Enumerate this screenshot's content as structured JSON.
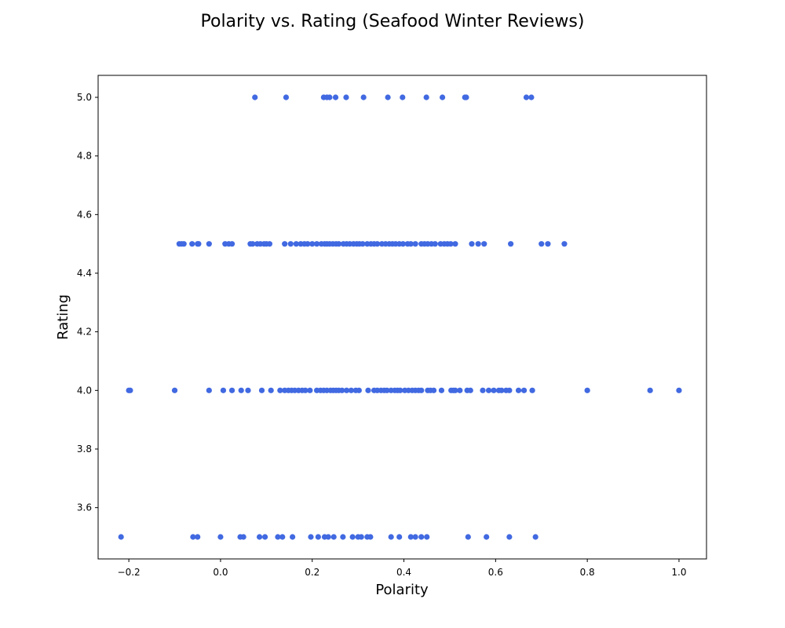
{
  "chart_data": {
    "type": "scatter",
    "title": "Polarity vs. Rating (Seafood Winter Reviews)",
    "xlabel": "Polarity",
    "ylabel": "Rating",
    "xlim": [
      -0.267,
      1.06
    ],
    "ylim": [
      3.425,
      5.075
    ],
    "xticks": [
      -0.2,
      0.0,
      0.2,
      0.4,
      0.6,
      0.8,
      1.0
    ],
    "xtick_labels": [
      "−0.2",
      "0.0",
      "0.2",
      "0.4",
      "0.6",
      "0.8",
      "1.0"
    ],
    "yticks": [
      3.6,
      3.8,
      4.0,
      4.2,
      4.4,
      4.6,
      4.8,
      5.0
    ],
    "ytick_labels": [
      "3.6",
      "3.8",
      "4.0",
      "4.2",
      "4.4",
      "4.6",
      "4.8",
      "5.0"
    ],
    "grid": false,
    "marker_color": "#4169e1",
    "series": [
      {
        "points": [
          [
            0.075,
            5.0
          ],
          [
            0.143,
            5.0
          ],
          [
            0.225,
            5.0
          ],
          [
            0.232,
            5.0
          ],
          [
            0.238,
            5.0
          ],
          [
            0.251,
            5.0
          ],
          [
            0.274,
            5.0
          ],
          [
            0.312,
            5.0
          ],
          [
            0.365,
            5.0
          ],
          [
            0.397,
            5.0
          ],
          [
            0.449,
            5.0
          ],
          [
            0.484,
            5.0
          ],
          [
            0.533,
            5.0
          ],
          [
            0.536,
            5.0
          ],
          [
            0.667,
            5.0
          ],
          [
            0.678,
            5.0
          ],
          [
            -0.09,
            4.5
          ],
          [
            -0.085,
            4.5
          ],
          [
            -0.08,
            4.5
          ],
          [
            -0.062,
            4.5
          ],
          [
            -0.05,
            4.5
          ],
          [
            -0.048,
            4.5
          ],
          [
            -0.025,
            4.5
          ],
          [
            0.01,
            4.5
          ],
          [
            0.018,
            4.5
          ],
          [
            0.025,
            4.5
          ],
          [
            0.065,
            4.5
          ],
          [
            0.07,
            4.5
          ],
          [
            0.08,
            4.5
          ],
          [
            0.087,
            4.5
          ],
          [
            0.095,
            4.5
          ],
          [
            0.1,
            4.5
          ],
          [
            0.107,
            4.5
          ],
          [
            0.14,
            4.5
          ],
          [
            0.153,
            4.5
          ],
          [
            0.165,
            4.5
          ],
          [
            0.175,
            4.5
          ],
          [
            0.183,
            4.5
          ],
          [
            0.19,
            4.5
          ],
          [
            0.2,
            4.5
          ],
          [
            0.21,
            4.5
          ],
          [
            0.22,
            4.5
          ],
          [
            0.227,
            4.5
          ],
          [
            0.232,
            4.5
          ],
          [
            0.238,
            4.5
          ],
          [
            0.245,
            4.5
          ],
          [
            0.252,
            4.5
          ],
          [
            0.258,
            4.5
          ],
          [
            0.268,
            4.5
          ],
          [
            0.275,
            4.5
          ],
          [
            0.282,
            4.5
          ],
          [
            0.29,
            4.5
          ],
          [
            0.297,
            4.5
          ],
          [
            0.303,
            4.5
          ],
          [
            0.31,
            4.5
          ],
          [
            0.32,
            4.5
          ],
          [
            0.328,
            4.5
          ],
          [
            0.335,
            4.5
          ],
          [
            0.342,
            4.5
          ],
          [
            0.352,
            4.5
          ],
          [
            0.36,
            4.5
          ],
          [
            0.368,
            4.5
          ],
          [
            0.375,
            4.5
          ],
          [
            0.382,
            4.5
          ],
          [
            0.39,
            4.5
          ],
          [
            0.398,
            4.5
          ],
          [
            0.408,
            4.5
          ],
          [
            0.415,
            4.5
          ],
          [
            0.425,
            4.5
          ],
          [
            0.438,
            4.5
          ],
          [
            0.445,
            4.5
          ],
          [
            0.452,
            4.5
          ],
          [
            0.46,
            4.5
          ],
          [
            0.468,
            4.5
          ],
          [
            0.48,
            4.5
          ],
          [
            0.488,
            4.5
          ],
          [
            0.495,
            4.5
          ],
          [
            0.502,
            4.5
          ],
          [
            0.512,
            4.5
          ],
          [
            0.548,
            4.5
          ],
          [
            0.562,
            4.5
          ],
          [
            0.575,
            4.5
          ],
          [
            0.633,
            4.5
          ],
          [
            0.7,
            4.5
          ],
          [
            0.714,
            4.5
          ],
          [
            0.75,
            4.5
          ],
          [
            -0.2,
            4.0
          ],
          [
            -0.197,
            4.0
          ],
          [
            -0.1,
            4.0
          ],
          [
            -0.025,
            4.0
          ],
          [
            0.006,
            4.0
          ],
          [
            0.025,
            4.0
          ],
          [
            0.045,
            4.0
          ],
          [
            0.06,
            4.0
          ],
          [
            0.09,
            4.0
          ],
          [
            0.11,
            4.0
          ],
          [
            0.13,
            4.0
          ],
          [
            0.14,
            4.0
          ],
          [
            0.148,
            4.0
          ],
          [
            0.155,
            4.0
          ],
          [
            0.162,
            4.0
          ],
          [
            0.17,
            4.0
          ],
          [
            0.178,
            4.0
          ],
          [
            0.185,
            4.0
          ],
          [
            0.195,
            4.0
          ],
          [
            0.21,
            4.0
          ],
          [
            0.218,
            4.0
          ],
          [
            0.225,
            4.0
          ],
          [
            0.232,
            4.0
          ],
          [
            0.24,
            4.0
          ],
          [
            0.246,
            4.0
          ],
          [
            0.252,
            4.0
          ],
          [
            0.258,
            4.0
          ],
          [
            0.265,
            4.0
          ],
          [
            0.275,
            4.0
          ],
          [
            0.285,
            4.0
          ],
          [
            0.295,
            4.0
          ],
          [
            0.302,
            4.0
          ],
          [
            0.322,
            4.0
          ],
          [
            0.335,
            4.0
          ],
          [
            0.342,
            4.0
          ],
          [
            0.35,
            4.0
          ],
          [
            0.357,
            4.0
          ],
          [
            0.363,
            4.0
          ],
          [
            0.372,
            4.0
          ],
          [
            0.38,
            4.0
          ],
          [
            0.386,
            4.0
          ],
          [
            0.392,
            4.0
          ],
          [
            0.402,
            4.0
          ],
          [
            0.41,
            4.0
          ],
          [
            0.418,
            4.0
          ],
          [
            0.425,
            4.0
          ],
          [
            0.432,
            4.0
          ],
          [
            0.438,
            4.0
          ],
          [
            0.452,
            4.0
          ],
          [
            0.458,
            4.0
          ],
          [
            0.465,
            4.0
          ],
          [
            0.482,
            4.0
          ],
          [
            0.503,
            4.0
          ],
          [
            0.508,
            4.0
          ],
          [
            0.512,
            4.0
          ],
          [
            0.522,
            4.0
          ],
          [
            0.538,
            4.0
          ],
          [
            0.545,
            4.0
          ],
          [
            0.572,
            4.0
          ],
          [
            0.585,
            4.0
          ],
          [
            0.596,
            4.0
          ],
          [
            0.607,
            4.0
          ],
          [
            0.613,
            4.0
          ],
          [
            0.623,
            4.0
          ],
          [
            0.63,
            4.0
          ],
          [
            0.65,
            4.0
          ],
          [
            0.662,
            4.0
          ],
          [
            0.68,
            4.0
          ],
          [
            0.8,
            4.0
          ],
          [
            0.937,
            4.0
          ],
          [
            1.0,
            4.0
          ],
          [
            -0.217,
            3.5
          ],
          [
            -0.06,
            3.5
          ],
          [
            -0.05,
            3.5
          ],
          [
            0.0,
            3.5
          ],
          [
            0.043,
            3.5
          ],
          [
            0.05,
            3.5
          ],
          [
            0.085,
            3.5
          ],
          [
            0.097,
            3.5
          ],
          [
            0.125,
            3.5
          ],
          [
            0.135,
            3.5
          ],
          [
            0.157,
            3.5
          ],
          [
            0.197,
            3.5
          ],
          [
            0.213,
            3.5
          ],
          [
            0.227,
            3.5
          ],
          [
            0.235,
            3.5
          ],
          [
            0.247,
            3.5
          ],
          [
            0.267,
            3.5
          ],
          [
            0.288,
            3.5
          ],
          [
            0.3,
            3.5
          ],
          [
            0.307,
            3.5
          ],
          [
            0.32,
            3.5
          ],
          [
            0.327,
            3.5
          ],
          [
            0.372,
            3.5
          ],
          [
            0.39,
            3.5
          ],
          [
            0.415,
            3.5
          ],
          [
            0.425,
            3.5
          ],
          [
            0.438,
            3.5
          ],
          [
            0.45,
            3.5
          ],
          [
            0.54,
            3.5
          ],
          [
            0.58,
            3.5
          ],
          [
            0.63,
            3.5
          ],
          [
            0.687,
            3.5
          ]
        ]
      }
    ]
  }
}
